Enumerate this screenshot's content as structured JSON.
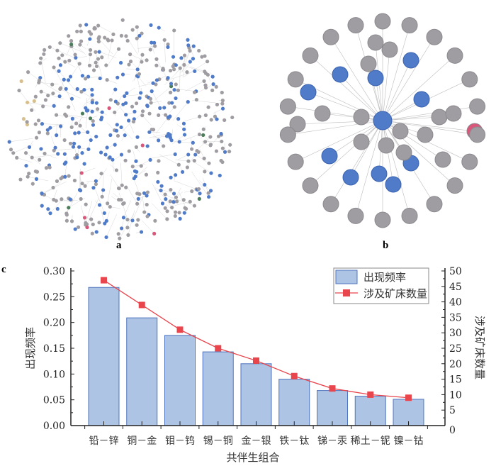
{
  "panels": {
    "a": "a",
    "b": "b",
    "c": "c"
  },
  "colors": {
    "bar_fill": "#aec4e4",
    "bar_stroke": "#4f74bf",
    "line": "#e8454c",
    "node_blue": "#4f7bc8",
    "node_gray": "#a09da2",
    "node_green": "#4b7d5a",
    "node_pink": "#d9577a",
    "node_tan": "#d8c08e"
  },
  "chart_data": {
    "type": "bar",
    "title": "",
    "xlabel": "共伴生组合",
    "ylabel": "出现频率",
    "y2label": "涉及矿床数量",
    "categories": [
      "铅－锌",
      "铜－金",
      "钼－钨",
      "锡－铜",
      "金－银",
      "铁－钛",
      "锑－汞",
      "稀土－铌",
      "镍－钴"
    ],
    "series": [
      {
        "name": "出现频率",
        "type": "bar",
        "axis": "left",
        "values": [
          0.268,
          0.209,
          0.175,
          0.143,
          0.12,
          0.09,
          0.068,
          0.057,
          0.051
        ]
      },
      {
        "name": "涉及矿床数量",
        "type": "line",
        "axis": "right",
        "values": [
          47,
          39,
          31,
          25,
          21,
          16,
          12,
          10,
          9
        ]
      }
    ],
    "ylim": [
      0,
      0.3
    ],
    "y2lim": [
      0,
      50
    ],
    "yticks": [
      "0.00",
      "0.05",
      "0.10",
      "0.15",
      "0.20",
      "0.25",
      "0.30"
    ],
    "y2ticks": [
      "0",
      "5",
      "10",
      "15",
      "20",
      "25",
      "30",
      "35",
      "40",
      "45",
      "50"
    ],
    "legend": "top-right",
    "grid": false
  }
}
